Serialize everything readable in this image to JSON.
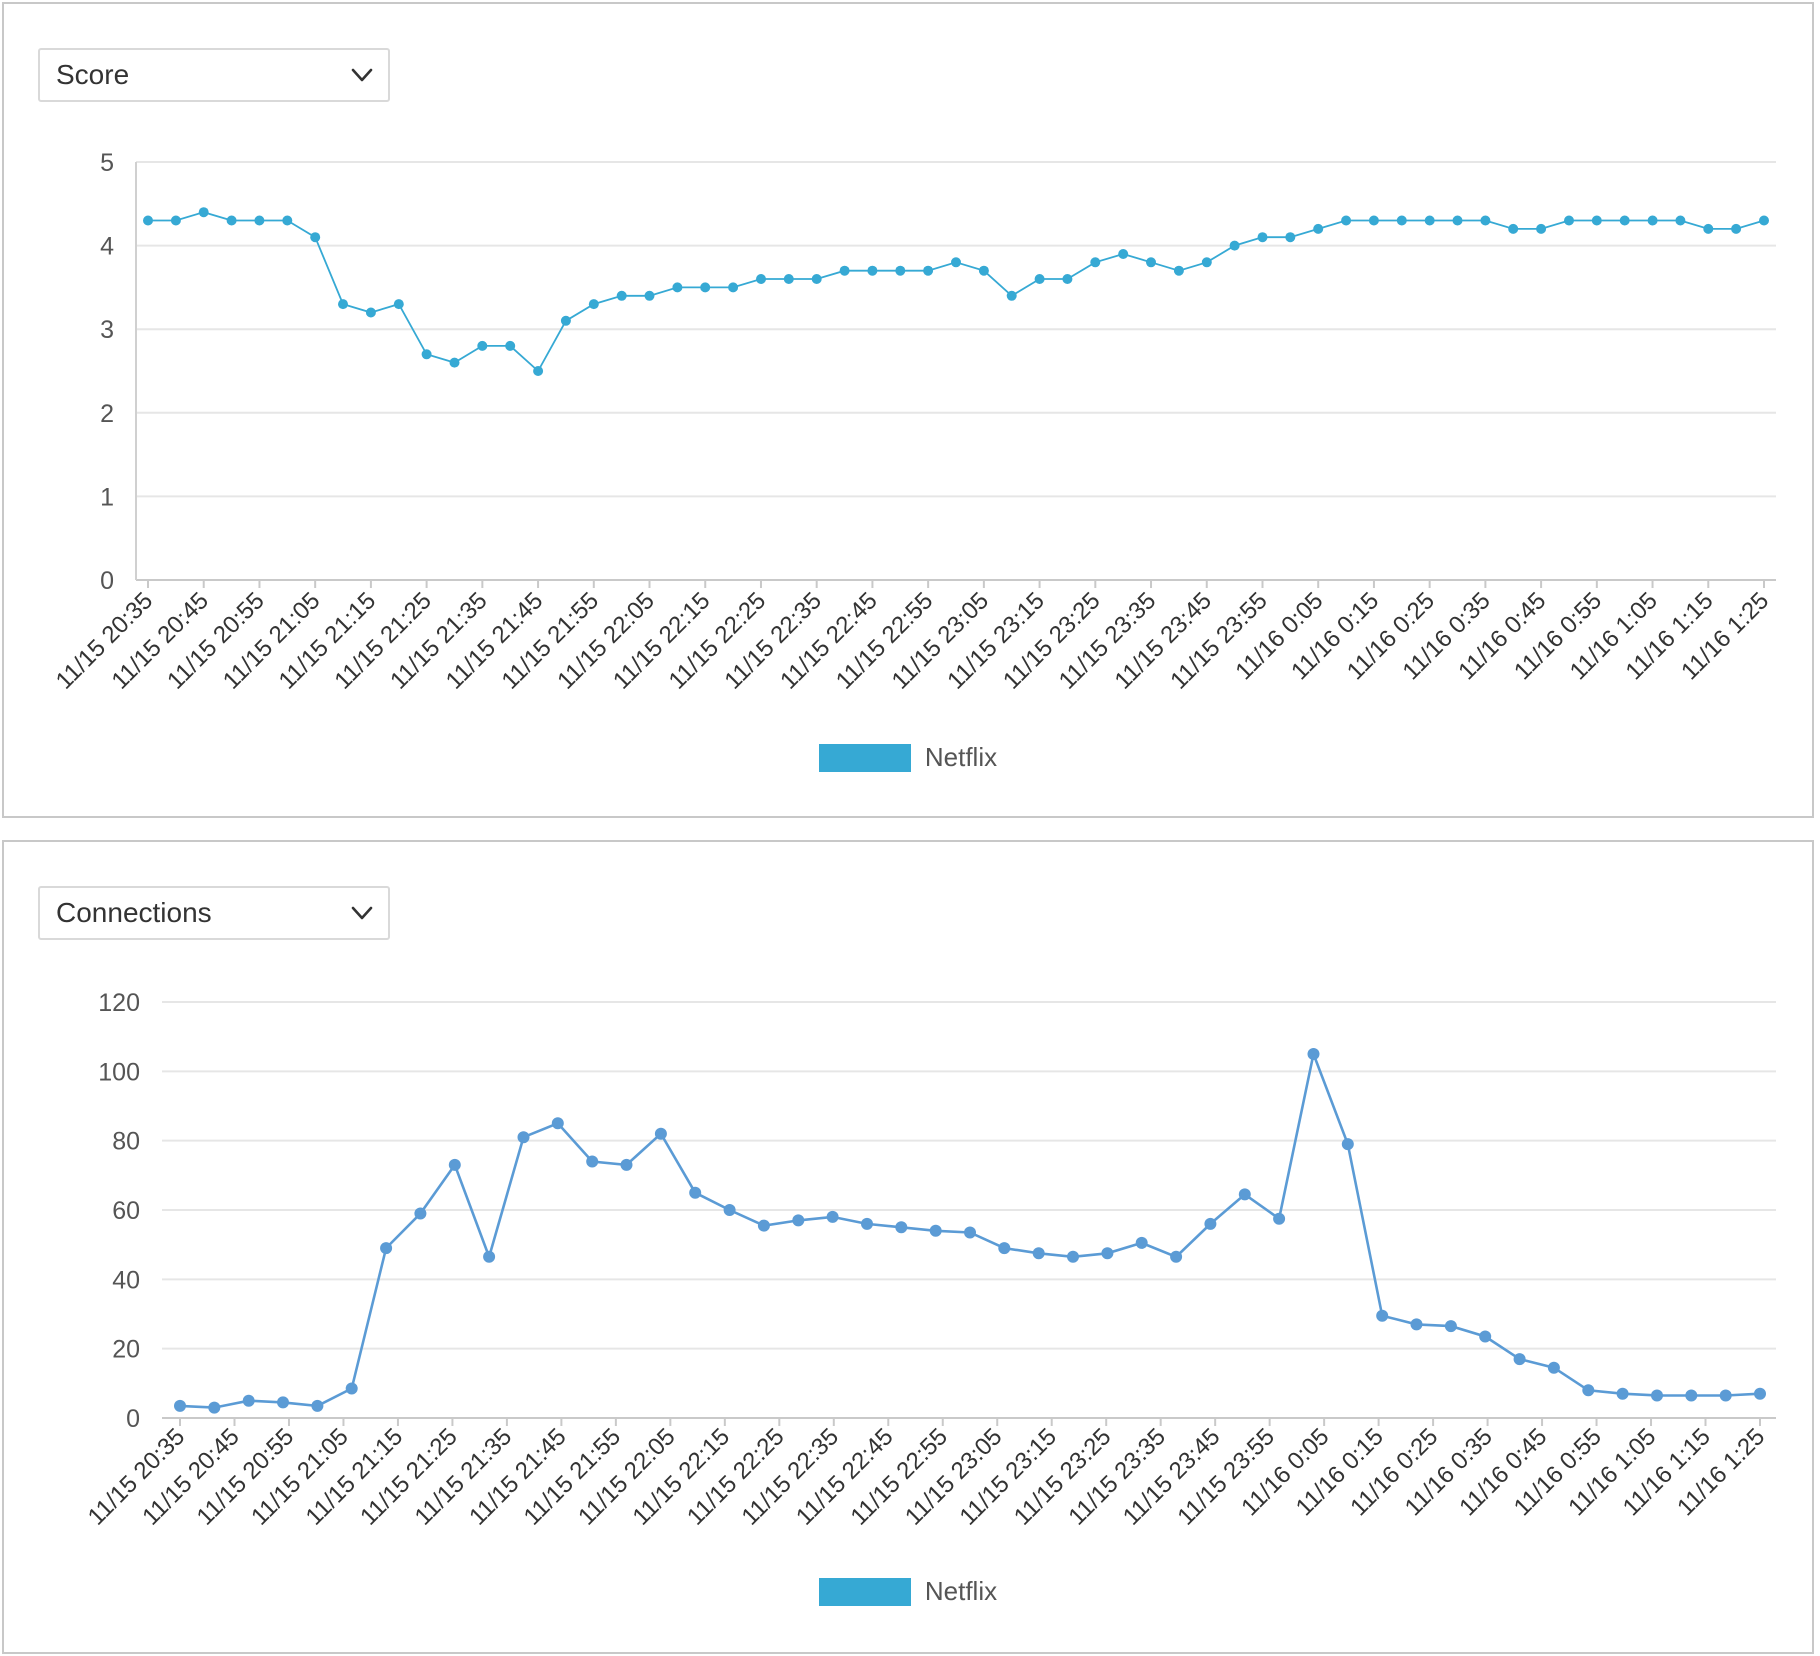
{
  "chart_data": [
    {
      "type": "line",
      "selector_label": "Score",
      "legend": [
        {
          "name": "Netflix",
          "color": "#36a9d4"
        }
      ],
      "color": "#36a9d4",
      "ylim": [
        0,
        5
      ],
      "yticks": [
        "0",
        "1",
        "2",
        "3",
        "4",
        "5"
      ],
      "xticks": [
        "11/15 20:35",
        "11/15 20:45",
        "11/15 20:55",
        "11/15 21:05",
        "11/15 21:15",
        "11/15 21:25",
        "11/15 21:35",
        "11/15 21:45",
        "11/15 21:55",
        "11/15 22:05",
        "11/15 22:15",
        "11/15 22:25",
        "11/15 22:35",
        "11/15 22:45",
        "11/15 22:55",
        "11/15 23:05",
        "11/15 23:15",
        "11/15 23:25",
        "11/15 23:35",
        "11/15 23:45",
        "11/15 23:55",
        "11/16 0:05",
        "11/16 0:15",
        "11/16 0:25",
        "11/16 0:35",
        "11/16 0:45",
        "11/16 0:55",
        "11/16 1:05",
        "11/16 1:15",
        "11/16 1:25"
      ],
      "series": [
        {
          "name": "Netflix",
          "values": [
            4.3,
            4.3,
            4.4,
            4.3,
            4.3,
            4.3,
            4.1,
            3.3,
            3.2,
            3.3,
            2.7,
            2.6,
            2.8,
            2.8,
            2.5,
            3.1,
            3.3,
            3.4,
            3.4,
            3.5,
            3.5,
            3.5,
            3.6,
            3.6,
            3.6,
            3.7,
            3.7,
            3.7,
            3.7,
            3.8,
            3.7,
            3.4,
            3.6,
            3.6,
            3.8,
            3.9,
            3.8,
            3.7,
            3.8,
            4.0,
            4.1,
            4.1,
            4.2,
            4.3,
            4.3,
            4.3,
            4.3,
            4.3,
            4.3,
            4.2,
            4.2,
            4.3,
            4.3,
            4.3,
            4.3,
            4.3,
            4.2,
            4.2,
            4.3
          ]
        }
      ]
    },
    {
      "type": "line",
      "selector_label": "Connections",
      "legend": [
        {
          "name": "Netflix",
          "color": "#36a9d4"
        }
      ],
      "color": "#5b9bd5",
      "ylim": [
        0,
        120
      ],
      "yticks": [
        "0",
        "20",
        "40",
        "60",
        "80",
        "100",
        "120"
      ],
      "xticks": [
        "11/15 20:35",
        "11/15 20:45",
        "11/15 20:55",
        "11/15 21:05",
        "11/15 21:15",
        "11/15 21:25",
        "11/15 21:35",
        "11/15 21:45",
        "11/15 21:55",
        "11/15 22:05",
        "11/15 22:15",
        "11/15 22:25",
        "11/15 22:35",
        "11/15 22:45",
        "11/15 22:55",
        "11/15 23:05",
        "11/15 23:15",
        "11/15 23:25",
        "11/15 23:35",
        "11/15 23:45",
        "11/15 23:55",
        "11/16 0:05",
        "11/16 0:15",
        "11/16 0:25",
        "11/16 0:35",
        "11/16 0:45",
        "11/16 0:55",
        "11/16 1:05",
        "11/16 1:15",
        "11/16 1:25"
      ],
      "series": [
        {
          "name": "Netflix",
          "values": [
            3.5,
            3,
            5,
            4.5,
            3.5,
            8.5,
            49,
            59,
            73,
            46.5,
            81,
            85,
            74,
            73,
            82,
            65,
            60,
            55.5,
            57,
            58,
            56,
            55,
            54,
            53.5,
            49,
            47.5,
            46.5,
            47.5,
            50.5,
            46.5,
            56,
            64.5,
            57.5,
            105,
            79,
            29.5,
            27,
            26.5,
            23.5,
            17,
            14.5,
            8,
            7,
            6.5,
            6.5,
            6.5,
            7
          ]
        }
      ]
    }
  ]
}
